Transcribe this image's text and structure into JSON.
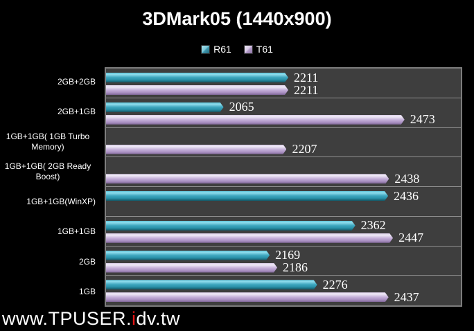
{
  "title": "3DMark05 (1440x900)",
  "watermark": {
    "prefix": "www.TPUSER.",
    "highlight": "i",
    "suffix": "dv.tw"
  },
  "colors": {
    "background": "#000000",
    "plot_background": "#3e3e3e",
    "plot_border": "#7d7d7d",
    "separator": "#8f8f8f",
    "r61_bar": "#2f97af",
    "t61_bar": "#c3aed8",
    "text": "#ffffff",
    "watermark_highlight": "#e81414"
  },
  "chart_data": {
    "type": "bar",
    "orientation": "horizontal",
    "title": "3DMark05 (1440x900)",
    "legend_position": "top",
    "xlim": [
      1800,
      2600
    ],
    "grid": "category separator lines only",
    "categories": [
      "2GB+2GB",
      "2GB+1GB",
      "1GB+1GB( 1GB Turbo Memory)",
      "1GB+1GB( 2GB Ready Boost)",
      "1GB+1GB(WinXP)",
      "1GB+1GB",
      "2GB",
      "1GB"
    ],
    "series": [
      {
        "name": "R61",
        "color": "#2f97af",
        "values": [
          2211,
          2065,
          null,
          null,
          2436,
          2362,
          2169,
          2276
        ]
      },
      {
        "name": "T61",
        "color": "#c3aed8",
        "values": [
          2211,
          2473,
          2207,
          2438,
          null,
          2447,
          2186,
          2437
        ]
      }
    ]
  }
}
